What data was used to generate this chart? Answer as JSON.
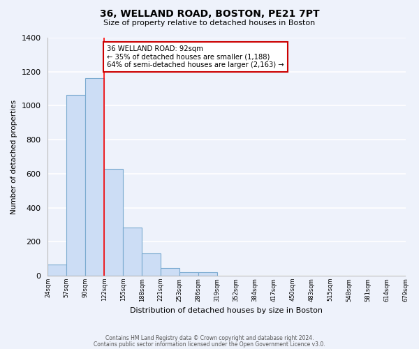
{
  "title": "36, WELLAND ROAD, BOSTON, PE21 7PT",
  "subtitle": "Size of property relative to detached houses in Boston",
  "xlabel": "Distribution of detached houses by size in Boston",
  "ylabel": "Number of detached properties",
  "bar_values": [
    65,
    1065,
    1160,
    630,
    285,
    130,
    45,
    20,
    20,
    0,
    0,
    0,
    0,
    0,
    0,
    0,
    0,
    0,
    0
  ],
  "bin_labels": [
    "24sqm",
    "57sqm",
    "90sqm",
    "122sqm",
    "155sqm",
    "188sqm",
    "221sqm",
    "253sqm",
    "286sqm",
    "319sqm",
    "352sqm",
    "384sqm",
    "417sqm",
    "450sqm",
    "483sqm",
    "515sqm",
    "548sqm",
    "581sqm",
    "614sqm",
    "679sqm"
  ],
  "bar_color": "#ccddf5",
  "bar_edge_color": "#7aaad0",
  "red_line_x": 2.5,
  "annotation_text": "36 WELLAND ROAD: 92sqm\n← 35% of detached houses are smaller (1,188)\n64% of semi-detached houses are larger (2,163) →",
  "annotation_box_color": "#ffffff",
  "annotation_box_edge": "#cc0000",
  "ylim": [
    0,
    1400
  ],
  "yticks": [
    0,
    200,
    400,
    600,
    800,
    1000,
    1200,
    1400
  ],
  "footer_line1": "Contains HM Land Registry data © Crown copyright and database right 2024.",
  "footer_line2": "Contains public sector information licensed under the Open Government Licence v3.0.",
  "background_color": "#eef2fb",
  "grid_color": "#ffffff",
  "n_bins": 19,
  "n_labels": 20
}
